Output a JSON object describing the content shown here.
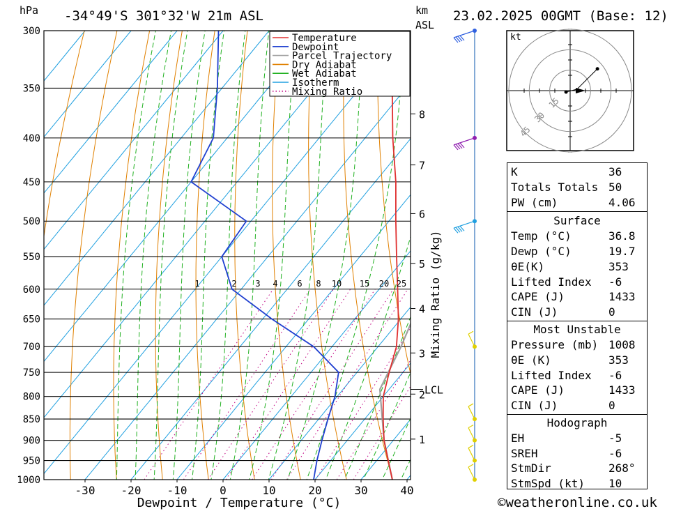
{
  "header": {
    "hpa_label": "hPa",
    "location": "-34°49'S 301°32'W 21m ASL",
    "km_label": "km",
    "asl_label": "ASL",
    "datetime": "23.02.2025 00GMT (Base: 12)"
  },
  "legend": [
    {
      "label": "Temperature",
      "color": "#e03030",
      "style": "solid"
    },
    {
      "label": "Dewpoint",
      "color": "#2040d0",
      "style": "solid"
    },
    {
      "label": "Parcel Trajectory",
      "color": "#a0a0a0",
      "style": "solid"
    },
    {
      "label": "Dry Adiabat",
      "color": "#e08000",
      "style": "solid"
    },
    {
      "label": "Wet Adiabat",
      "color": "#20b020",
      "style": "solid"
    },
    {
      "label": "Isotherm",
      "color": "#20a0e0",
      "style": "solid"
    },
    {
      "label": "Mixing Ratio",
      "color": "#c00080",
      "style": "dotted"
    }
  ],
  "chart_data": {
    "type": "skew-t",
    "xlabel": "Dewpoint / Temperature (°C)",
    "ylabel": "hPa",
    "y2label": "km ASL",
    "mixing_ratio_label": "Mixing Ratio (g/kg)",
    "xlim": [
      -40,
      40
    ],
    "ylim": [
      1000,
      300
    ],
    "pressure_levels": [
      300,
      350,
      400,
      450,
      500,
      550,
      600,
      650,
      700,
      750,
      800,
      850,
      900,
      950,
      1000
    ],
    "x_ticks": [
      -30,
      -20,
      -10,
      0,
      10,
      20,
      30,
      40
    ],
    "km_ticks": [
      {
        "km": "1",
        "p": 897
      },
      {
        "km": "2",
        "p": 795
      },
      {
        "km": "3",
        "p": 712
      },
      {
        "km": "4",
        "p": 632
      },
      {
        "km": "5",
        "p": 560
      },
      {
        "km": "6",
        "p": 490
      },
      {
        "km": "7",
        "p": 430
      },
      {
        "km": "8",
        "p": 375
      }
    ],
    "lcl": {
      "label": "LCL",
      "p": 785
    },
    "mixing_ratio_labels": [
      "1",
      "2",
      "3",
      "4",
      "6",
      "8",
      "10",
      "15",
      "20",
      "25"
    ],
    "temperature": [
      {
        "p": 1000,
        "t": 36.8
      },
      {
        "p": 950,
        "t": 32.5
      },
      {
        "p": 900,
        "t": 28.0
      },
      {
        "p": 850,
        "t": 24.0
      },
      {
        "p": 800,
        "t": 20.0
      },
      {
        "p": 750,
        "t": 17.0
      },
      {
        "p": 700,
        "t": 14.0
      },
      {
        "p": 650,
        "t": 9.5
      },
      {
        "p": 600,
        "t": 4.0
      },
      {
        "p": 550,
        "t": -2.0
      },
      {
        "p": 500,
        "t": -8.5
      },
      {
        "p": 450,
        "t": -15.5
      },
      {
        "p": 400,
        "t": -24.0
      },
      {
        "p": 350,
        "t": -33.0
      },
      {
        "p": 300,
        "t": -42.0
      }
    ],
    "dewpoint": [
      {
        "p": 1000,
        "t": 19.7
      },
      {
        "p": 950,
        "t": 17.0
      },
      {
        "p": 900,
        "t": 14.5
      },
      {
        "p": 850,
        "t": 12.0
      },
      {
        "p": 800,
        "t": 9.5
      },
      {
        "p": 750,
        "t": 6.0
      },
      {
        "p": 700,
        "t": -4.0
      },
      {
        "p": 650,
        "t": -18.0
      },
      {
        "p": 600,
        "t": -32.0
      },
      {
        "p": 550,
        "t": -40.0
      },
      {
        "p": 500,
        "t": -41.0
      },
      {
        "p": 450,
        "t": -60.0
      },
      {
        "p": 400,
        "t": -63.0
      },
      {
        "p": 350,
        "t": -71.0
      },
      {
        "p": 300,
        "t": -81.0
      }
    ],
    "parcel": [
      {
        "p": 1000,
        "t": 36.8
      },
      {
        "p": 900,
        "t": 28.0
      },
      {
        "p": 785,
        "t": 18.0
      },
      {
        "p": 700,
        "t": 15.0
      },
      {
        "p": 600,
        "t": 10.0
      },
      {
        "p": 500,
        "t": 3.0
      },
      {
        "p": 450,
        "t": -1.5
      },
      {
        "p": 400,
        "t": -7.0
      },
      {
        "p": 370,
        "t": -11.0
      }
    ],
    "wind_barbs_p": [
      300,
      400,
      500,
      700,
      850,
      900,
      950,
      1000
    ],
    "hodograph": {
      "unit": "kt",
      "rings": [
        "15",
        "30",
        "45"
      ],
      "points": [
        [
          -3,
          -1
        ],
        [
          1,
          0
        ],
        [
          5,
          1
        ],
        [
          20,
          16
        ]
      ]
    }
  },
  "indices": {
    "general": [
      {
        "label": "K",
        "value": "36"
      },
      {
        "label": "Totals Totals",
        "value": "50"
      },
      {
        "label": "PW (cm)",
        "value": "4.06"
      }
    ],
    "surface": {
      "title": "Surface",
      "rows": [
        {
          "label": "Temp (°C)",
          "value": "36.8"
        },
        {
          "label": "Dewp (°C)",
          "value": "19.7"
        },
        {
          "label": "θE(K)",
          "value": "353"
        },
        {
          "label": "Lifted Index",
          "value": "-6"
        },
        {
          "label": "CAPE (J)",
          "value": "1433"
        },
        {
          "label": "CIN (J)",
          "value": "0"
        }
      ]
    },
    "most_unstable": {
      "title": "Most Unstable",
      "rows": [
        {
          "label": "Pressure (mb)",
          "value": "1008"
        },
        {
          "label": "θE (K)",
          "value": "353"
        },
        {
          "label": "Lifted Index",
          "value": "-6"
        },
        {
          "label": "CAPE (J)",
          "value": "1433"
        },
        {
          "label": "CIN (J)",
          "value": "0"
        }
      ]
    },
    "hodograph": {
      "title": "Hodograph",
      "rows": [
        {
          "label": "EH",
          "value": "-5"
        },
        {
          "label": "SREH",
          "value": "-6"
        },
        {
          "label": "StmDir",
          "value": "268°"
        },
        {
          "label": "StmSpd (kt)",
          "value": "10"
        }
      ]
    }
  },
  "footer": {
    "copyright": "©weatheronline.co.uk"
  }
}
